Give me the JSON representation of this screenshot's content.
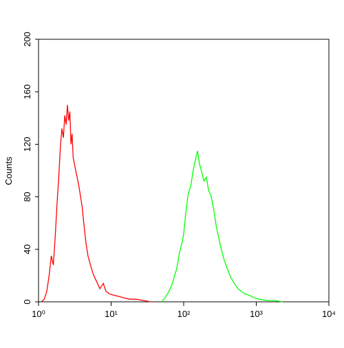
{
  "chart_data": {
    "type": "line",
    "y_label": "Counts",
    "x_log": true,
    "xlim": [
      1,
      10000
    ],
    "xticks": [
      {
        "value": 1,
        "label": "10⁰"
      },
      {
        "value": 10,
        "label": "10¹"
      },
      {
        "value": 100,
        "label": "10²"
      },
      {
        "value": 1000,
        "label": "10³"
      },
      {
        "value": 10000,
        "label": "10⁴"
      }
    ],
    "ylim": [
      0,
      200
    ],
    "yticks": [
      0,
      40,
      80,
      120,
      160,
      200
    ],
    "series": [
      {
        "color": "#ff0000",
        "x": [
          1.1,
          1.2,
          1.3,
          1.4,
          1.5,
          1.6,
          1.7,
          1.8,
          1.9,
          2.0,
          2.1,
          2.2,
          2.3,
          2.4,
          2.5,
          2.6,
          2.7,
          2.8,
          2.9,
          3.0,
          3.2,
          3.4,
          3.6,
          3.8,
          4.0,
          4.2,
          4.5,
          4.8,
          5.2,
          5.6,
          6.0,
          6.5,
          7.0,
          7.8,
          8.5,
          9.5,
          11,
          13,
          15,
          18,
          22,
          28,
          35
        ],
        "values": [
          0,
          2,
          8,
          20,
          35,
          28,
          50,
          75,
          95,
          118,
          132,
          125,
          142,
          135,
          150,
          138,
          145,
          120,
          128,
          110,
          102,
          95,
          88,
          80,
          72,
          60,
          45,
          35,
          28,
          22,
          18,
          14,
          10,
          14,
          8,
          6,
          5,
          4,
          3,
          2,
          2,
          1,
          0
        ]
      },
      {
        "color": "#00ff00",
        "x": [
          50,
          55,
          60,
          65,
          70,
          75,
          80,
          88,
          95,
          100,
          108,
          115,
          125,
          135,
          145,
          155,
          165,
          175,
          190,
          205,
          220,
          240,
          260,
          280,
          300,
          330,
          360,
          400,
          450,
          500,
          560,
          620,
          700,
          800,
          950,
          1100,
          1400,
          1800,
          2300
        ],
        "values": [
          0,
          3,
          6,
          10,
          14,
          20,
          25,
          38,
          45,
          52,
          70,
          82,
          88,
          100,
          108,
          115,
          105,
          100,
          92,
          95,
          85,
          80,
          70,
          58,
          50,
          40,
          32,
          25,
          18,
          14,
          10,
          8,
          6,
          5,
          3,
          2,
          1,
          1,
          0
        ]
      }
    ]
  }
}
